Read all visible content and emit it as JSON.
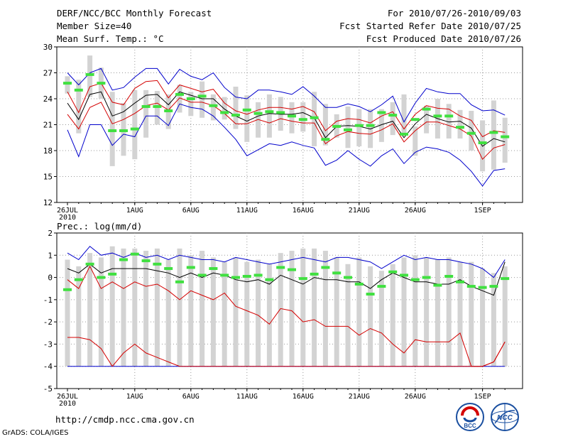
{
  "header": {
    "title": "DERF/NCC/BCC Monthly Forecast",
    "member_size": "Member Size=40",
    "variable": "Mean Surf. Temp.: °C",
    "for_period": "For 2010/07/26-2010/09/03",
    "fcst_started": "Fcst Started Refer Date 2010/07/25",
    "fcst_produced": "Fcst Produced Date 2010/07/26"
  },
  "footer": {
    "url": "http://cmdp.ncc.cma.gov.cn",
    "grads": "GrADS: COLA/IGES",
    "logo_bcc": "BCC",
    "logo_ncc": "NCC"
  },
  "colors": {
    "box": "#d3d3d3",
    "green": "#40e040",
    "blue": "#0000cc",
    "red": "#d40000",
    "black": "#000000",
    "grid": "#999999"
  },
  "chart_data": [
    {
      "type": "box-line",
      "title": "Mean Surf. Temp.: °C",
      "ylabel": "Mean Surf. Temp. (°C)",
      "ylim": [
        12,
        30
      ],
      "yticks": [
        12,
        15,
        18,
        21,
        24,
        27,
        30
      ],
      "x_day_start": 0,
      "x_day_end": 40,
      "xtick_days": [
        0,
        6,
        11,
        16,
        21,
        26,
        31,
        37
      ],
      "xtick_labels": [
        "26JUL",
        "1AUG",
        "6AUG",
        "11AUG",
        "16AUG",
        "21AUG",
        "26AUG",
        "1SEP"
      ],
      "xtick_sublabel": "2010",
      "grid": true,
      "box_low": [
        24.6,
        20.0,
        24.2,
        24.0,
        16.2,
        17.4,
        17.0,
        19.5,
        21.0,
        20.5,
        22.4,
        22.0,
        21.8,
        21.5,
        21.6,
        20.5,
        19.0,
        19.5,
        19.5,
        20.3,
        20.0,
        20.2,
        18.5,
        18.6,
        19.5,
        18.3,
        18.5,
        18.3,
        19.0,
        19.8,
        19.8,
        17.4,
        20.0,
        19.4,
        19.4,
        19.4,
        18.0,
        15.6,
        15.8,
        16.6
      ],
      "box_high": [
        26.6,
        26.2,
        29.0,
        27.6,
        24.8,
        23.5,
        25.0,
        25.0,
        24.9,
        24.5,
        25.6,
        24.8,
        26.0,
        24.5,
        24.2,
        25.4,
        24.4,
        23.6,
        24.5,
        24.2,
        23.6,
        23.6,
        24.8,
        23.4,
        22.2,
        23.1,
        22.8,
        22.8,
        22.8,
        23.6,
        24.5,
        20.8,
        23.2,
        24.0,
        23.4,
        22.7,
        22.6,
        21.5,
        23.8,
        21.8
      ],
      "ensemble_mean": [
        25.8,
        25.0,
        26.8,
        25.8,
        20.3,
        20.3,
        20.5,
        23.1,
        23.1,
        22.6,
        24.5,
        24.0,
        24.3,
        23.2,
        22.4,
        22.1,
        22.7,
        22.3,
        22.5,
        22.4,
        22.0,
        21.6,
        21.8,
        19.3,
        20.8,
        20.4,
        20.9,
        20.9,
        22.4,
        22.1,
        19.9,
        21.6,
        22.8,
        22.0,
        22.0,
        20.7,
        20.0,
        18.9,
        20.1,
        19.6
      ],
      "series": [
        {
          "name": "max",
          "color": "blue",
          "values": [
            20.4,
            17.3,
            21.0,
            21.0,
            18.6,
            19.9,
            19.6,
            22.0,
            22.0,
            20.9,
            23.4,
            23.0,
            22.8,
            22.0,
            20.7,
            19.3,
            17.4,
            18.1,
            18.8,
            18.6,
            19.0,
            18.6,
            18.3,
            16.3,
            16.9,
            18.0,
            17.0,
            16.2,
            17.4,
            18.2,
            16.5,
            17.8,
            18.4,
            18.2,
            17.8,
            16.9,
            15.6,
            13.9,
            15.7,
            15.9
          ]
        },
        {
          "name": "max",
          "color": "blue",
          "values": [
            27.0,
            25.6,
            27.0,
            27.5,
            25.0,
            25.3,
            26.5,
            27.5,
            27.5,
            25.7,
            27.4,
            26.6,
            26.2,
            27.0,
            25.3,
            24.2,
            24.0,
            25.0,
            25.0,
            24.8,
            24.5,
            25.4,
            24.3,
            23.0,
            23.0,
            23.4,
            23.1,
            22.5,
            23.3,
            24.3,
            21.3,
            23.5,
            25.2,
            24.8,
            24.6,
            24.6,
            23.3,
            22.6,
            22.7,
            22.1
          ]
        },
        {
          "name": "q_low",
          "color": "red",
          "values": [
            22.2,
            20.5,
            23.0,
            23.6,
            21.1,
            21.6,
            22.3,
            23.2,
            23.5,
            22.7,
            24.1,
            23.6,
            23.6,
            23.2,
            22.3,
            21.1,
            21.1,
            21.6,
            21.2,
            21.7,
            21.4,
            21.2,
            21.2,
            18.8,
            19.7,
            20.2,
            20.0,
            19.9,
            20.4,
            21.1,
            19.0,
            20.3,
            21.3,
            21.3,
            20.9,
            20.5,
            19.7,
            17.0,
            18.3,
            18.7
          ]
        },
        {
          "name": "q_high",
          "color": "red",
          "values": [
            24.8,
            22.4,
            25.4,
            25.8,
            23.6,
            23.3,
            25.2,
            26.0,
            26.1,
            24.1,
            25.6,
            25.2,
            24.8,
            25.1,
            23.5,
            22.6,
            22.2,
            22.7,
            23.0,
            23.0,
            22.8,
            23.1,
            22.5,
            20.3,
            21.4,
            21.7,
            21.6,
            21.2,
            22.0,
            22.5,
            20.5,
            22.2,
            23.2,
            22.9,
            22.8,
            22.0,
            21.5,
            19.6,
            20.3,
            20.1
          ]
        },
        {
          "name": "mean",
          "color": "black",
          "values": [
            23.5,
            21.6,
            24.5,
            24.8,
            22.0,
            22.5,
            23.5,
            24.4,
            24.5,
            23.3,
            24.8,
            24.4,
            24.0,
            24.0,
            22.8,
            22.0,
            21.4,
            22.0,
            22.3,
            22.2,
            22.2,
            22.4,
            21.8,
            19.5,
            20.8,
            20.9,
            20.8,
            20.5,
            21.0,
            21.4,
            19.5,
            21.1,
            22.2,
            21.7,
            21.3,
            21.4,
            20.6,
            18.5,
            19.4,
            19.0
          ]
        }
      ]
    },
    {
      "type": "box-line",
      "title": "Prec.: log(mm/d)",
      "ylabel": "Prec. log(mm/d)",
      "ylim": [
        -5,
        2
      ],
      "yticks": [
        -5,
        -4,
        -3,
        -2,
        -1,
        0,
        1,
        2
      ],
      "x_day_start": 0,
      "x_day_end": 40,
      "xtick_days": [
        0,
        6,
        11,
        16,
        21,
        26,
        31,
        37
      ],
      "xtick_labels": [
        "26JUL",
        "1AUG",
        "6AUG",
        "11AUG",
        "16AUG",
        "21AUG",
        "26AUG",
        "1SEP"
      ],
      "xtick_sublabel": "2010",
      "grid": true,
      "box_low": [
        -4,
        -4,
        -4,
        -4,
        -4,
        -4,
        -4,
        -4,
        -4,
        -4,
        -4,
        -4,
        -4,
        -4,
        -4,
        -4,
        -4,
        -4,
        -4,
        -4,
        -4,
        -4,
        -4,
        -4,
        -4,
        -4,
        -4,
        -4,
        -4,
        -4,
        -4,
        -4,
        -4,
        -4,
        -4,
        -4,
        -4,
        -4,
        -4,
        -4
      ],
      "box_high": [
        0.8,
        0.5,
        1.1,
        0.9,
        1.4,
        1.3,
        1.3,
        1.2,
        1.3,
        0.8,
        1.3,
        1.0,
        1.2,
        0.9,
        0.7,
        0.9,
        0.7,
        0.8,
        0.6,
        1.1,
        1.2,
        1.3,
        1.3,
        1.2,
        0.9,
        0.6,
        0.9,
        0.5,
        0.3,
        0.6,
        0.9,
        1.0,
        0.9,
        0.8,
        0.9,
        0.7,
        0.7,
        0.4,
        0.2,
        0.5
      ],
      "ensemble_mean": [
        -0.55,
        -0.1,
        0.6,
        0.0,
        0.15,
        0.8,
        1.05,
        0.75,
        0.6,
        0.4,
        -0.2,
        0.45,
        0.1,
        0.4,
        0.1,
        0.0,
        0.05,
        0.1,
        -0.1,
        0.45,
        0.35,
        -0.05,
        0.15,
        0.45,
        0.2,
        0.0,
        -0.3,
        -0.75,
        -0.4,
        0.25,
        0.1,
        -0.1,
        0.0,
        -0.35,
        0.05,
        -0.2,
        -0.4,
        -0.45,
        -0.4,
        -0.05
      ],
      "series": [
        {
          "name": "min",
          "color": "blue",
          "values": [
            -4,
            -4,
            -4,
            -4,
            -4,
            -4,
            -4,
            -4,
            -4,
            -4,
            -4,
            -4,
            -4,
            -4,
            -4,
            -4,
            -4,
            -4,
            -4,
            -4,
            -4,
            -4,
            -4,
            -4,
            -4,
            -4,
            -4,
            -4,
            -4,
            -4,
            -4,
            -4,
            -4,
            -4,
            -4,
            -4,
            -4,
            -4,
            -4,
            -4
          ]
        },
        {
          "name": "max",
          "color": "blue",
          "values": [
            1.1,
            0.8,
            1.4,
            1.0,
            1.1,
            0.9,
            1.1,
            0.9,
            1.0,
            0.8,
            1.0,
            0.9,
            0.8,
            0.8,
            0.7,
            0.9,
            0.8,
            0.7,
            0.6,
            0.7,
            0.8,
            0.9,
            0.8,
            0.7,
            0.9,
            0.9,
            0.8,
            0.7,
            0.4,
            0.7,
            1.0,
            0.8,
            0.9,
            0.8,
            0.8,
            0.7,
            0.6,
            0.4,
            0.0,
            0.8
          ]
        },
        {
          "name": "q_low",
          "color": "red",
          "values": [
            -2.7,
            -2.7,
            -2.8,
            -3.2,
            -4.0,
            -3.4,
            -3.0,
            -3.4,
            -3.6,
            -3.8,
            -4.0,
            -4.0,
            -4.0,
            -4.0,
            -4.0,
            -4.0,
            -4.0,
            -4.0,
            -4.0,
            -4.0,
            -4.0,
            -4.0,
            -4.0,
            -4.0,
            -4.0,
            -4.0,
            -4.0,
            -4.0,
            -4.0,
            -4.0,
            -4.0,
            -4.0,
            -4.0,
            -4.0,
            -4.0,
            -4.0,
            -4.0,
            -4.0,
            -3.8,
            -2.9
          ]
        },
        {
          "name": "q_high",
          "color": "red",
          "values": [
            -0.1,
            -0.5,
            0.5,
            -0.5,
            -0.2,
            -0.5,
            -0.2,
            -0.4,
            -0.3,
            -0.6,
            -1.0,
            -0.6,
            -0.8,
            -1.0,
            -0.7,
            -1.3,
            -1.5,
            -1.7,
            -2.1,
            -1.4,
            -1.5,
            -2.0,
            -1.9,
            -2.2,
            -2.2,
            -2.2,
            -2.6,
            -2.3,
            -2.5,
            -3.0,
            -3.4,
            -2.8,
            -2.9,
            -2.9,
            -2.9,
            -2.5,
            -4.0,
            -4.0,
            -3.8,
            -2.9
          ]
        },
        {
          "name": "mean",
          "color": "black",
          "values": [
            0.4,
            0.2,
            0.6,
            0.2,
            0.4,
            0.4,
            0.4,
            0.4,
            0.3,
            0.2,
            0.0,
            0.2,
            0.0,
            0.2,
            0.1,
            -0.1,
            -0.2,
            -0.1,
            -0.3,
            0.1,
            -0.1,
            -0.3,
            0.0,
            -0.1,
            -0.1,
            -0.2,
            -0.2,
            -0.5,
            -0.1,
            0.2,
            0.0,
            -0.2,
            -0.2,
            -0.3,
            -0.3,
            -0.1,
            -0.4,
            -0.6,
            -0.8,
            0.7
          ]
        }
      ]
    }
  ]
}
